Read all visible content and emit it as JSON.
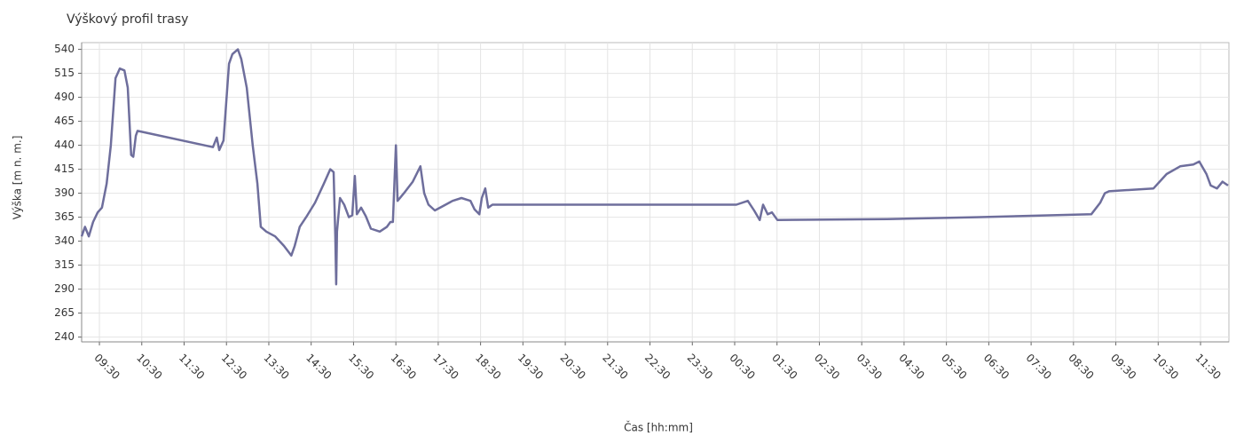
{
  "chart_data": {
    "type": "line",
    "title": "Výškový profil trasy",
    "y_label": "Výška [m n. m.]",
    "x_label": "Čas  [hh:mm]",
    "grid": true,
    "ylim": [
      235,
      547
    ],
    "yticks": [
      240,
      265,
      290,
      315,
      340,
      365,
      390,
      415,
      440,
      465,
      490,
      515,
      540
    ],
    "xlim": [
      9.08,
      36.17
    ],
    "xticks": [
      {
        "value": 9.5,
        "label": "09:30"
      },
      {
        "value": 10.5,
        "label": "10:30"
      },
      {
        "value": 11.5,
        "label": "11:30"
      },
      {
        "value": 12.5,
        "label": "12:30"
      },
      {
        "value": 13.5,
        "label": "13:30"
      },
      {
        "value": 14.5,
        "label": "14:30"
      },
      {
        "value": 15.5,
        "label": "15:30"
      },
      {
        "value": 16.5,
        "label": "16:30"
      },
      {
        "value": 17.5,
        "label": "17:30"
      },
      {
        "value": 18.5,
        "label": "18:30"
      },
      {
        "value": 19.5,
        "label": "19:30"
      },
      {
        "value": 20.5,
        "label": "20:30"
      },
      {
        "value": 21.5,
        "label": "21:30"
      },
      {
        "value": 22.5,
        "label": "22:30"
      },
      {
        "value": 23.5,
        "label": "23:30"
      },
      {
        "value": 24.5,
        "label": "00:30"
      },
      {
        "value": 25.5,
        "label": "01:30"
      },
      {
        "value": 26.5,
        "label": "02:30"
      },
      {
        "value": 27.5,
        "label": "03:30"
      },
      {
        "value": 28.5,
        "label": "04:30"
      },
      {
        "value": 29.5,
        "label": "05:30"
      },
      {
        "value": 30.5,
        "label": "06:30"
      },
      {
        "value": 31.5,
        "label": "07:30"
      },
      {
        "value": 32.5,
        "label": "08:30"
      },
      {
        "value": 33.5,
        "label": "09:30"
      },
      {
        "value": 34.5,
        "label": "10:30"
      },
      {
        "value": 35.5,
        "label": "11:30"
      }
    ],
    "x": [
      9.08,
      9.16,
      9.25,
      9.35,
      9.46,
      9.56,
      9.67,
      9.77,
      9.88,
      9.98,
      10.09,
      10.17,
      10.25,
      10.3,
      10.36,
      10.4,
      12.18,
      12.27,
      12.33,
      12.43,
      12.56,
      12.64,
      12.77,
      12.85,
      12.98,
      13.12,
      13.23,
      13.31,
      13.44,
      13.65,
      13.86,
      14.03,
      14.11,
      14.23,
      14.38,
      14.59,
      14.8,
      14.95,
      15.03,
      15.07,
      15.09,
      15.11,
      15.18,
      15.28,
      15.39,
      15.47,
      15.53,
      15.58,
      15.68,
      15.79,
      15.91,
      16.12,
      16.29,
      16.37,
      16.43,
      16.5,
      16.54,
      16.69,
      16.9,
      17.08,
      17.17,
      17.27,
      17.42,
      17.63,
      17.84,
      18.05,
      18.26,
      18.36,
      18.47,
      18.53,
      18.61,
      18.68,
      18.78,
      24.54,
      24.81,
      24.96,
      25.09,
      25.17,
      25.28,
      25.38,
      25.51,
      28.1,
      30.2,
      32.92,
      33.13,
      33.24,
      33.34,
      34.39,
      34.7,
      35.02,
      35.33,
      35.47,
      35.64,
      35.74,
      35.89,
      36.02,
      36.15
    ],
    "series": [
      {
        "color": "#6e6e9c",
        "values": [
          345,
          355,
          345,
          360,
          370,
          375,
          400,
          440,
          510,
          520,
          518,
          500,
          430,
          428,
          450,
          455,
          438,
          448,
          435,
          445,
          525,
          535,
          540,
          530,
          500,
          440,
          400,
          355,
          350,
          345,
          335,
          325,
          335,
          355,
          365,
          380,
          400,
          415,
          412,
          345,
          295,
          350,
          385,
          378,
          365,
          367,
          408,
          368,
          375,
          366,
          353,
          350,
          355,
          360,
          360,
          440,
          382,
          390,
          402,
          418,
          390,
          378,
          372,
          377,
          382,
          385,
          382,
          373,
          368,
          385,
          395,
          375,
          378,
          378,
          382,
          372,
          362,
          378,
          368,
          370,
          362,
          363,
          365,
          368,
          380,
          390,
          392,
          395,
          410,
          418,
          420,
          423,
          410,
          398,
          395,
          402,
          398
        ]
      }
    ]
  }
}
